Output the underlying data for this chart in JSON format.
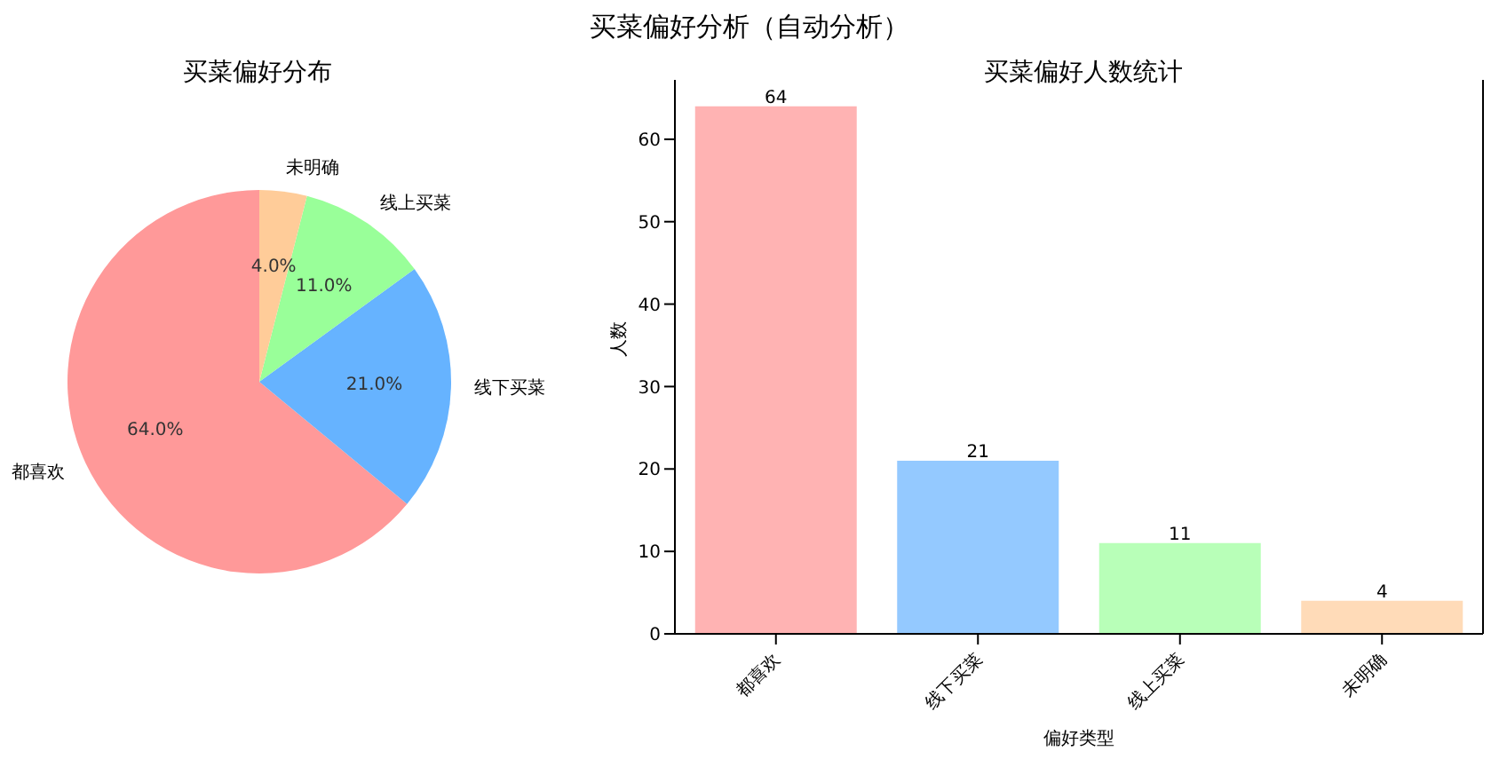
{
  "chart_data": [
    {
      "type": "pie",
      "title": "买菜偏好分布",
      "annotations": [
        "买菜偏好分析（自动分析）"
      ],
      "categories": [
        "都喜欢",
        "线下买菜",
        "线上买菜",
        "未明确"
      ],
      "values": [
        64,
        21,
        11,
        4
      ],
      "colors": [
        "#ff9999",
        "#66b3ff",
        "#99ff99",
        "#ffcc99"
      ],
      "value_labels": [
        "64.0%",
        "21.0%",
        "11.0%",
        "4.0%"
      ],
      "legend": false
    },
    {
      "type": "bar",
      "title": "买菜偏好人数统计",
      "xlabel": "偏好类型",
      "ylabel": "人数",
      "categories": [
        "都喜欢",
        "线下买菜",
        "线上买菜",
        "未明确"
      ],
      "values": [
        64,
        21,
        11,
        4
      ],
      "colors": [
        "#ffb3b3",
        "#94c9ff",
        "#b8ffb8",
        "#ffdbb8"
      ],
      "ylim": [
        0,
        67.2
      ],
      "yticks": [
        0,
        10,
        20,
        30,
        40,
        50,
        60
      ],
      "data_labels": true,
      "grid": false,
      "legend": false
    }
  ]
}
